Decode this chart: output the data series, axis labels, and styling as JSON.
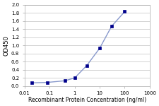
{
  "x": [
    0.02,
    0.08,
    0.4,
    1.0,
    3.0,
    10.0,
    30.0,
    100.0
  ],
  "y": [
    0.08,
    0.09,
    0.13,
    0.2,
    0.5,
    0.93,
    1.47,
    1.83
  ],
  "line_color": "#8899cc",
  "marker_color": "#00008b",
  "marker_style": "s",
  "marker_size": 2.5,
  "line_width": 1.0,
  "xlabel": "Recombinant Protein Concentration (ng/ml)",
  "ylabel": "OD450",
  "xlim": [
    0.01,
    1000
  ],
  "ylim": [
    0,
    2
  ],
  "yticks": [
    0,
    0.2,
    0.4,
    0.6,
    0.8,
    1.0,
    1.2,
    1.4,
    1.6,
    1.8,
    2.0
  ],
  "xtick_labels": [
    "0.01",
    "0.1",
    "1",
    "10",
    "100",
    "1000"
  ],
  "xtick_vals": [
    0.01,
    0.1,
    1,
    10,
    100,
    1000
  ],
  "plot_bg_color": "#ffffff",
  "fig_bg_color": "#ffffff",
  "grid_color": "#cccccc",
  "axis_fontsize": 5.5,
  "tick_fontsize": 5.0,
  "ylabel_fontsize": 6.0
}
